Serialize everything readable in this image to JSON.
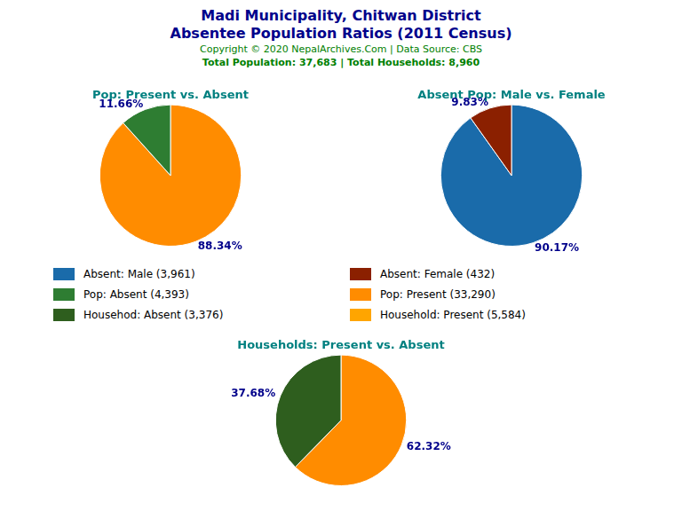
{
  "title": "Madi Municipality, Chitwan District",
  "subtitle": "Absentee Population Ratios (2011 Census)",
  "annotations": [
    "Copyright © 2020 NepalArchives.Com | Data Source: CBS",
    "Total Population: 37,683 | Total Households: 8,960"
  ],
  "legend_items": [
    {
      "name": "Absent: Male (3,961)",
      "color": "#1A6BAA"
    },
    {
      "name": "Absent: Female (432)",
      "color": "#8B2000"
    },
    {
      "name": "Pop: Absent (4,393)",
      "color": "#2E7D32"
    },
    {
      "name": "Pop: Present (33,290)",
      "color": "#FF8C00"
    },
    {
      "name": "Househod: Absent (3,376)",
      "color": "#2E5E1E"
    },
    {
      "name": "Household: Present (5,584)",
      "color": "#FFA500"
    }
  ],
  "chart_data": [
    {
      "type": "pie",
      "title": "Pop: Present vs. Absent",
      "values": [
        88.34,
        11.66
      ],
      "value_labels": [
        "88.34%",
        "11.66%"
      ],
      "colors": [
        "#FF8C00",
        "#2E7D32"
      ],
      "data_labels": true
    },
    {
      "type": "pie",
      "title": "Absent Pop: Male vs. Female",
      "values": [
        90.17,
        9.83
      ],
      "value_labels": [
        "90.17%",
        "9.83%"
      ],
      "colors": [
        "#1A6BAA",
        "#8B2000"
      ],
      "data_labels": true
    },
    {
      "type": "pie",
      "title": "Households: Present vs. Absent",
      "values": [
        62.32,
        37.68
      ],
      "value_labels": [
        "62.32%",
        "37.68%"
      ],
      "colors": [
        "#FF8C00",
        "#2E5E1E"
      ],
      "data_labels": true
    }
  ]
}
